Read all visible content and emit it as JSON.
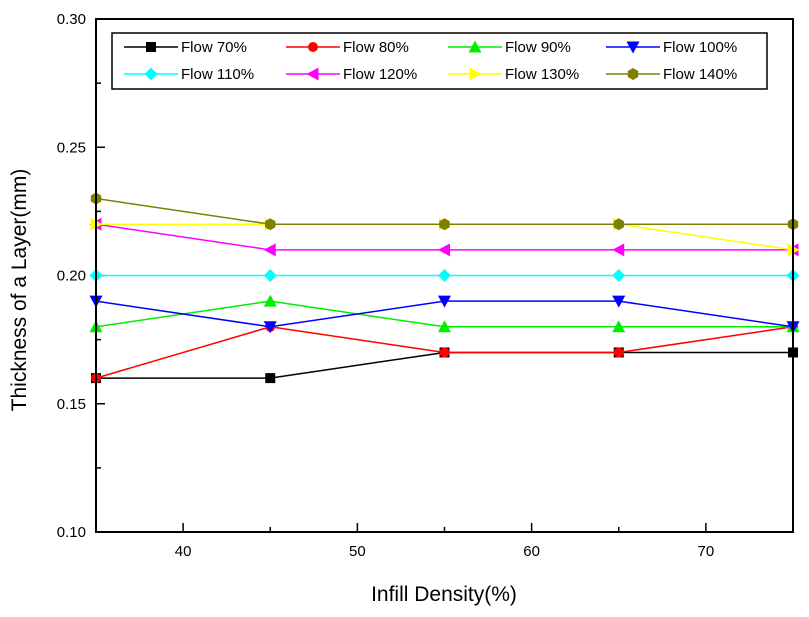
{
  "chart_data": {
    "type": "line",
    "title": "",
    "xlabel": "Infill Density(%)",
    "ylabel": "Thickness of a Layer(mm)",
    "xlim": [
      35,
      75
    ],
    "ylim": [
      0.1,
      0.3
    ],
    "x_ticks": [
      40,
      50,
      60,
      70
    ],
    "x_tick_labels": [
      "40",
      "50",
      "60",
      "70"
    ],
    "y_ticks": [
      0.1,
      0.15,
      0.2,
      0.25,
      0.3
    ],
    "y_tick_labels": [
      "0.10",
      "0.15",
      "0.20",
      "0.25",
      "0.30"
    ],
    "grid": false,
    "legend_position": "top",
    "x": [
      35,
      45,
      55,
      65,
      75
    ],
    "series": [
      {
        "name": "Flow 70%",
        "values": [
          0.16,
          0.16,
          0.17,
          0.17,
          0.17
        ],
        "color": "#000000",
        "marker": "square"
      },
      {
        "name": "Flow 80%",
        "values": [
          0.16,
          0.18,
          0.17,
          0.17,
          0.18
        ],
        "color": "#ff0000",
        "marker": "circle"
      },
      {
        "name": "Flow 90%",
        "values": [
          0.18,
          0.19,
          0.18,
          0.18,
          0.18
        ],
        "color": "#00ee00",
        "marker": "triangle-up"
      },
      {
        "name": "Flow 100%",
        "values": [
          0.19,
          0.18,
          0.19,
          0.19,
          0.18
        ],
        "color": "#0000ff",
        "marker": "triangle-down"
      },
      {
        "name": "Flow 110%",
        "values": [
          0.2,
          0.2,
          0.2,
          0.2,
          0.2
        ],
        "color": "#00ffff",
        "marker": "diamond"
      },
      {
        "name": "Flow 120%",
        "values": [
          0.22,
          0.21,
          0.21,
          0.21,
          0.21
        ],
        "color": "#ff00ff",
        "marker": "triangle-left"
      },
      {
        "name": "Flow 130%",
        "values": [
          0.22,
          0.22,
          0.22,
          0.22,
          0.21
        ],
        "color": "#ffff00",
        "marker": "triangle-right"
      },
      {
        "name": "Flow 140%",
        "values": [
          0.23,
          0.22,
          0.22,
          0.22,
          0.22
        ],
        "color": "#808000",
        "marker": "hexagon"
      }
    ]
  }
}
